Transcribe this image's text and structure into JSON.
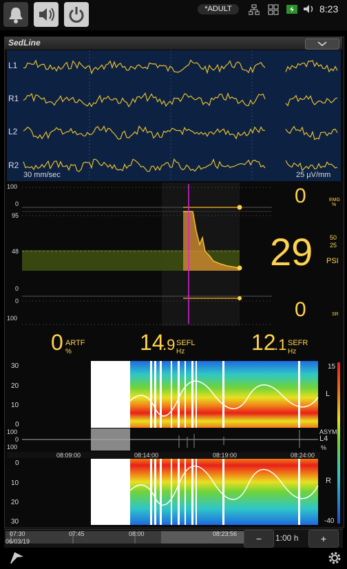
{
  "status": {
    "mode": "*ADULT",
    "time": "8:23"
  },
  "header": {
    "title": "SedLine"
  },
  "eeg": {
    "channels": [
      "L1",
      "R1",
      "L2",
      "R2"
    ],
    "speed": "30 mm/sec",
    "scale": "25 µV/mm"
  },
  "trend": {
    "emg": {
      "ticks": [
        "100",
        "0"
      ],
      "value": "0",
      "unit_top": "EMG",
      "unit_bot": "%"
    },
    "psi": {
      "ticks": [
        "95",
        "48",
        "0"
      ],
      "value": "29",
      "upper": "50",
      "lower": "25",
      "label": "PSI"
    },
    "sr": {
      "ticks": [
        "0",
        "100"
      ],
      "value": "0",
      "unit": "SR"
    }
  },
  "params": {
    "artf": {
      "value": "0",
      "label": "ARTF",
      "unit": "%"
    },
    "sefl": {
      "value_int": "14",
      "value_dec": ".9",
      "label": "SEFL",
      "unit": "Hz"
    },
    "sefr": {
      "value_int": "12",
      "value_dec": ".1",
      "label": "SEFR",
      "unit": "Hz"
    }
  },
  "dsa": {
    "left_ticks": [
      "30",
      "20",
      "10",
      "0"
    ],
    "right_ticks": [
      "0",
      "10",
      "20",
      "30"
    ],
    "asym_ticks": [
      "100",
      "0",
      "100"
    ],
    "scale_top": "15",
    "scale_bot": "-40",
    "label_l": "L",
    "label_r": "R",
    "asym_label": "ASYM",
    "asym_channel": "L4",
    "asym_unit": "%",
    "times": [
      "08:09:00",
      "08:14:00",
      "08:19:00",
      "08:24:00"
    ]
  },
  "timeline": {
    "start_time": "07:30",
    "start_date": "06/03/19",
    "marks": [
      "07:45",
      "08:00",
      "08:23:56"
    ],
    "minus": "−",
    "window": "1:00 h",
    "plus": "+"
  }
}
